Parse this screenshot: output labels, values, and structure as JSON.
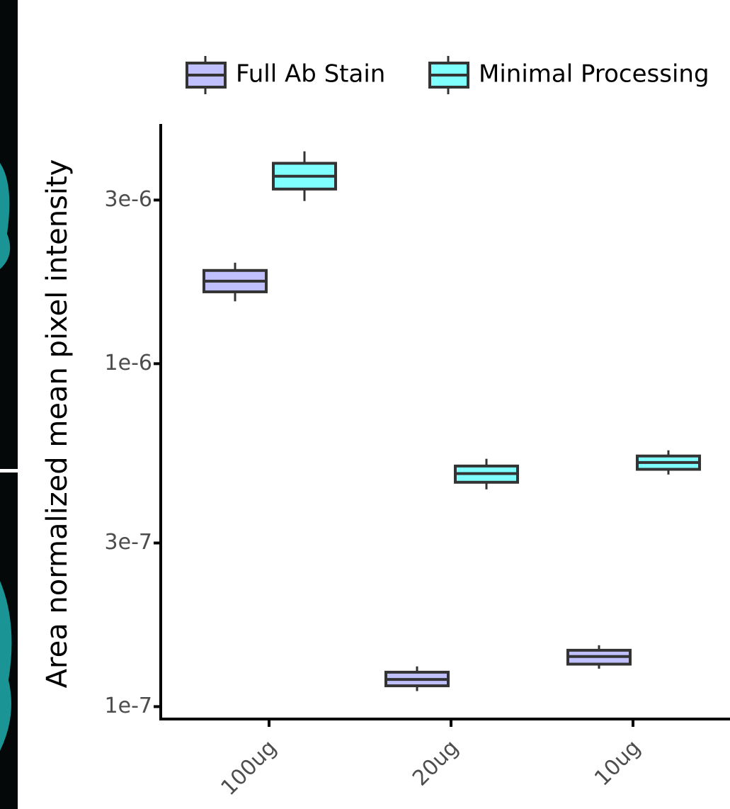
{
  "chart_data": {
    "type": "box",
    "y_label": "Area normalized mean pixel intensity",
    "categories": [
      "100ug",
      "20ug",
      "10ug"
    ],
    "log_scale": true,
    "ylim": [
      9.2e-08,
      5e-06
    ],
    "yticks": [
      {
        "value": 1e-07,
        "label": "1e-7"
      },
      {
        "value": 3e-07,
        "label": "3e-7"
      },
      {
        "value": 1e-06,
        "label": "1e-6"
      },
      {
        "value": 3e-06,
        "label": "3e-6"
      }
    ],
    "legend_position": "top",
    "series": [
      {
        "name": "Full Ab Stain",
        "color": "#c0c0ff",
        "whisker_low": [
          1.52e-06,
          1.11e-07,
          1.29e-07
        ],
        "q1": [
          1.62e-06,
          1.15e-07,
          1.33e-07
        ],
        "median": [
          1.74e-06,
          1.2e-07,
          1.4e-07
        ],
        "q3": [
          1.87e-06,
          1.26e-07,
          1.46e-07
        ],
        "whisker_high": [
          1.97e-06,
          1.31e-07,
          1.51e-07
        ]
      },
      {
        "name": "Minimal Processing",
        "color": "#80ffff",
        "whisker_low": [
          2.98e-06,
          4.3e-07,
          4.75e-07
        ],
        "q1": [
          3.23e-06,
          4.51e-07,
          4.92e-07
        ],
        "median": [
          3.52e-06,
          4.78e-07,
          5.15e-07
        ],
        "q3": [
          3.84e-06,
          5.03e-07,
          5.38e-07
        ],
        "whisker_high": [
          4.16e-06,
          5.28e-07,
          5.59e-07
        ]
      }
    ]
  }
}
